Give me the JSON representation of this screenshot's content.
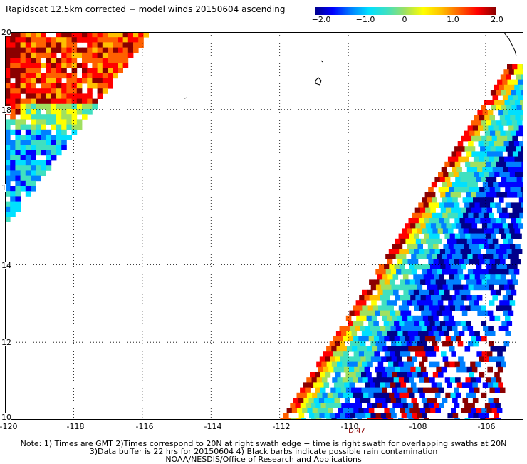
{
  "title": "Rapidscat 12.5km corrected − model winds 20150604 ascending",
  "colorbar": {
    "labels": [
      "−2.0",
      "−1.0",
      "0",
      "1.0",
      "2.0"
    ],
    "min": -2.0,
    "max": 2.0,
    "colors": [
      "#00008b",
      "#0000ff",
      "#0080ff",
      "#00e0ff",
      "#40e0c0",
      "#a0e060",
      "#ffff00",
      "#ffc000",
      "#ff6000",
      "#ff0000",
      "#8b0000"
    ]
  },
  "axes": {
    "lon_min": -120,
    "lon_max": -104.9,
    "lat_min": 10,
    "lat_max": 20,
    "lon_ticks": [
      "-120",
      "-118",
      "-116",
      "-114",
      "-112",
      "-110",
      "-108",
      "-106"
    ],
    "lat_ticks": [
      "20",
      "18",
      "1",
      "14",
      "12",
      "10"
    ]
  },
  "swath_time": "D:47",
  "notes": [
    "Note: 1) Times are GMT 2)Times correspond to 20N at right swath edge − time is right swath for overlapping swaths at 20N",
    "3)Data buffer is 22 hrs for 20150604 4) Black barbs indicate possible rain contamination",
    "NOAA/NESDIS/Office of Research and Applications"
  ]
}
